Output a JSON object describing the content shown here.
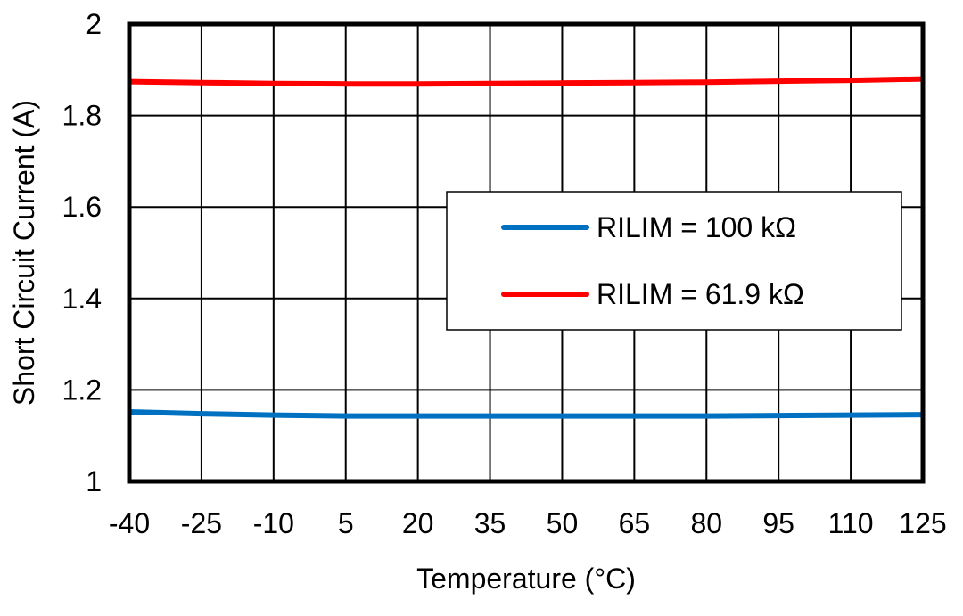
{
  "chart_data": {
    "type": "line",
    "title": "",
    "xlabel": "Temperature (°C)",
    "ylabel": "Short Circuit Current (A)",
    "x": [
      -40,
      -25,
      -10,
      5,
      20,
      35,
      50,
      65,
      80,
      95,
      110,
      125
    ],
    "x_tick_labels": [
      "-40",
      "-25",
      "-10",
      "5",
      "20",
      "35",
      "50",
      "65",
      "80",
      "95",
      "110",
      "125"
    ],
    "y_tick_labels": [
      "1",
      "1.2",
      "1.4",
      "1.6",
      "1.8",
      "2"
    ],
    "y_ticks": [
      1,
      1.2,
      1.4,
      1.6,
      1.8,
      2
    ],
    "ylim": [
      1,
      2
    ],
    "grid": true,
    "legend_position": "center-right",
    "series": [
      {
        "name": "RILIM = 100 kΩ",
        "color": "#0070c0",
        "values": [
          1.152,
          1.148,
          1.145,
          1.143,
          1.143,
          1.143,
          1.143,
          1.143,
          1.143,
          1.144,
          1.145,
          1.146
        ]
      },
      {
        "name": "RILIM = 61.9 kΩ",
        "color": "#ff0000",
        "values": [
          1.874,
          1.872,
          1.87,
          1.869,
          1.869,
          1.87,
          1.871,
          1.872,
          1.873,
          1.875,
          1.877,
          1.88
        ]
      }
    ]
  }
}
